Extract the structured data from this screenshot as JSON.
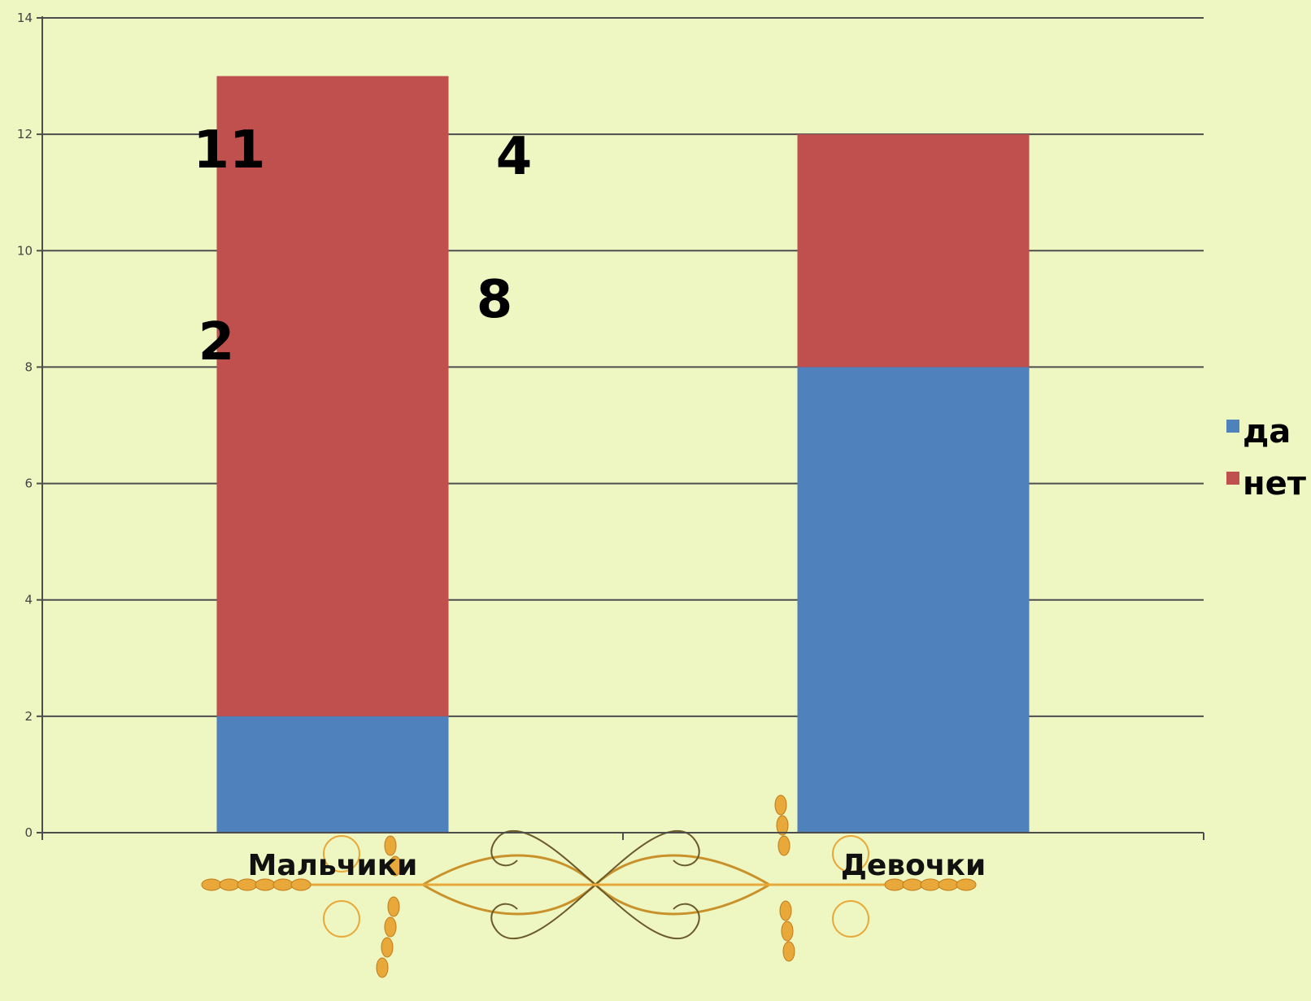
{
  "chart_data": {
    "type": "bar",
    "stacked": true,
    "categories": [
      "Мальчики",
      "Девочки"
    ],
    "series": [
      {
        "name": "да",
        "values": [
          2,
          8
        ],
        "color": "#4f81bd"
      },
      {
        "name": "нет",
        "values": [
          11,
          4
        ],
        "color": "#c0504d"
      }
    ],
    "ylim": [
      0,
      14
    ],
    "yticks": [
      0,
      2,
      4,
      6,
      8,
      10,
      12,
      14
    ],
    "grid": true,
    "legend_position": "right",
    "annotations": [
      "11",
      "4",
      "8",
      "2"
    ]
  },
  "colors": {
    "background": "#eef6c2",
    "gridline": "#4d4d4d",
    "ornament": "#e8a93a"
  },
  "icons": {
    "ornament": "wheat-ornament-icon"
  }
}
